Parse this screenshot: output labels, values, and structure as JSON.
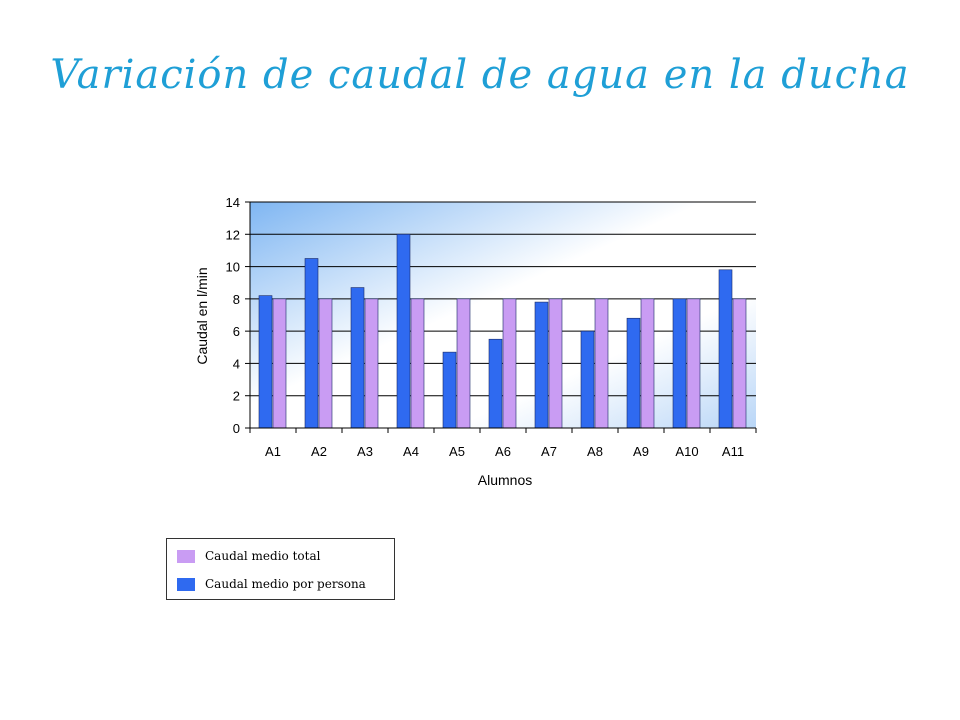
{
  "slide": {
    "title": "Variación de caudal de agua en la ducha"
  },
  "colors": {
    "series_total": "#c99cf3",
    "series_persona": "#2f6af0",
    "title": "#1f9fd6"
  },
  "chart_data": {
    "type": "bar",
    "title": "",
    "xlabel": "Alumnos",
    "ylabel": "Caudal en l/min",
    "ylim": [
      0,
      14
    ],
    "yticks": [
      0,
      2,
      4,
      6,
      8,
      10,
      12,
      14
    ],
    "grid": true,
    "legend": "bottom-left",
    "categories": [
      "A1",
      "A2",
      "A3",
      "A4",
      "A5",
      "A6",
      "A7",
      "A8",
      "A9",
      "A10",
      "A11"
    ],
    "series": [
      {
        "name": "Caudal medio por persona",
        "values": [
          8.2,
          10.5,
          8.7,
          12.0,
          4.7,
          5.5,
          7.8,
          6.0,
          6.8,
          8.0,
          9.8
        ]
      },
      {
        "name": "Caudal medio total",
        "values": [
          8,
          8,
          8,
          8,
          8,
          8,
          8,
          8,
          8,
          8,
          8
        ]
      }
    ]
  },
  "legend": {
    "items": [
      {
        "label": "Caudal medio total"
      },
      {
        "label": "Caudal medio por persona"
      }
    ]
  }
}
